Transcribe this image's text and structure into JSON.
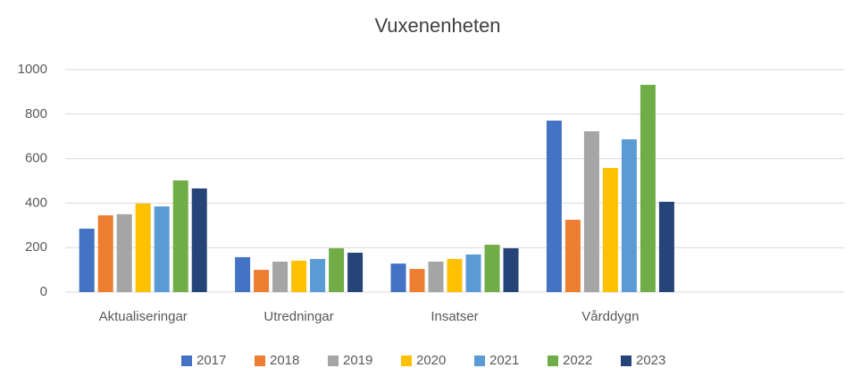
{
  "chart_data": {
    "type": "bar",
    "title": "Vuxenenheten",
    "categories": [
      "Aktualiseringar",
      "Utredningar",
      "Insatser",
      "Vårddygn",
      null
    ],
    "series": [
      {
        "name": "2017",
        "color": "#4472c4",
        "values": [
          285,
          157,
          128,
          771,
          null
        ]
      },
      {
        "name": "2018",
        "color": "#ed7d31",
        "values": [
          345,
          100,
          104,
          325,
          null
        ]
      },
      {
        "name": "2019",
        "color": "#a5a5a5",
        "values": [
          350,
          137,
          137,
          723,
          null
        ]
      },
      {
        "name": "2020",
        "color": "#ffc000",
        "values": [
          398,
          141,
          149,
          558,
          null
        ]
      },
      {
        "name": "2021",
        "color": "#5b9bd5",
        "values": [
          385,
          149,
          169,
          687,
          null
        ]
      },
      {
        "name": "2022",
        "color": "#70ad47",
        "values": [
          502,
          197,
          213,
          932,
          null
        ]
      },
      {
        "name": "2023",
        "color": "#264478",
        "values": [
          466,
          177,
          197,
          406,
          null
        ]
      }
    ],
    "ylim": [
      0,
      1000
    ],
    "yticks": [
      0,
      200,
      400,
      600,
      800,
      1000
    ],
    "grid": true,
    "legend": "bottom"
  }
}
